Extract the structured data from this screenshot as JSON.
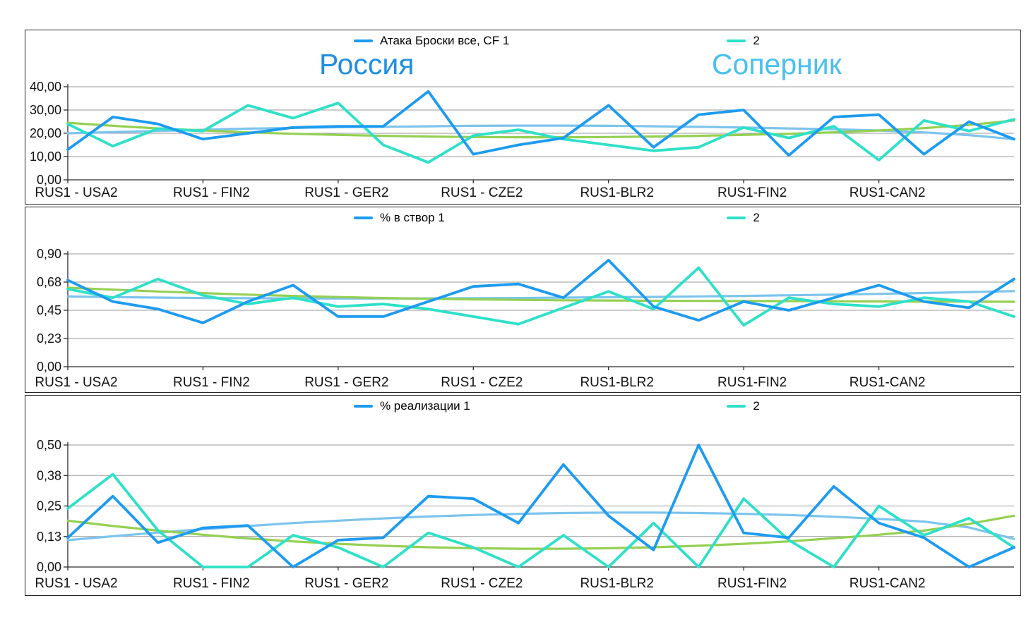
{
  "titles": {
    "left": "Россия",
    "right": "Соперник"
  },
  "colors": {
    "series1": "#1d9bf0",
    "series2": "#2fe0c8",
    "trend1": "#7cc4ed",
    "trend2": "#94d052",
    "title_russia": "#1e8fe3",
    "title_opponent": "#49c0ef",
    "axis": "#2a2a2a",
    "grid": "#9a9a9a",
    "text": "#111111",
    "background": "#ffffff"
  },
  "chart_data": [
    {
      "type": "line",
      "legend": [
        "Атака Броски все, CF 1",
        "2"
      ],
      "ylim": [
        0,
        40
      ],
      "ytick_values": [
        0,
        10,
        20,
        30,
        40
      ],
      "ytick_labels": [
        "0,00",
        "10,00",
        "20,00",
        "30,00",
        "40,00"
      ],
      "categories": [
        "RUS1 - USA2",
        "RUS1 - FIN2",
        "RUS1 - GER2",
        "RUS1 - CZE2",
        "RUS1-BLR2",
        "RUS1-FIN2",
        "RUS1-CAN2"
      ],
      "series": [
        {
          "name": "Атака Броски все, CF 1",
          "color": "#1d9bf0",
          "values": [
            13,
            27,
            24,
            17.5,
            20,
            22.5,
            23,
            23,
            38,
            11,
            15,
            18,
            32,
            14,
            28,
            30,
            10.5,
            27,
            28,
            11,
            25,
            17.5
          ]
        },
        {
          "name": "2",
          "color": "#2fe0c8",
          "values": [
            24,
            14.5,
            22,
            21,
            32,
            26.5,
            33,
            15,
            7.5,
            19,
            21.5,
            17.5,
            15,
            12.5,
            14,
            22.5,
            18,
            23,
            8.5,
            25.5,
            21,
            26
          ]
        }
      ],
      "trendlines": [
        {
          "for": "Атака Броски все, CF 1",
          "color": "#7cc4ed",
          "values": [
            20,
            20.5,
            21,
            21.5,
            22,
            22.3,
            22.6,
            22.8,
            23,
            23.2,
            23.3,
            23.3,
            23.2,
            23,
            22.8,
            22.5,
            22.1,
            21.7,
            21.2,
            20.4,
            19.2,
            17.5
          ]
        },
        {
          "for": "2",
          "color": "#94d052",
          "values": [
            24.5,
            23.2,
            22.1,
            21.2,
            20.4,
            19.8,
            19.3,
            18.9,
            18.6,
            18.4,
            18.3,
            18.3,
            18.4,
            18.6,
            18.9,
            19.3,
            19.8,
            20.4,
            21.2,
            22.2,
            23.6,
            25.5
          ]
        }
      ]
    },
    {
      "type": "line",
      "legend": [
        "% в створ 1",
        "2"
      ],
      "ylim": [
        0,
        0.9
      ],
      "ytick_values": [
        0,
        0.225,
        0.45,
        0.675,
        0.9
      ],
      "ytick_labels": [
        "0,00",
        "0,23",
        "0,45",
        "0,68",
        "0,90"
      ],
      "categories": [
        "RUS1 - USA2",
        "RUS1 - FIN2",
        "RUS1 - GER2",
        "RUS1 - CZE2",
        "RUS1-BLR2",
        "RUS1-FIN2",
        "RUS1-CAN2"
      ],
      "series": [
        {
          "name": "% в створ 1",
          "color": "#1d9bf0",
          "values": [
            0.69,
            0.52,
            0.46,
            0.35,
            0.52,
            0.65,
            0.4,
            0.4,
            0.52,
            0.64,
            0.66,
            0.55,
            0.85,
            0.48,
            0.37,
            0.52,
            0.45,
            0.55,
            0.65,
            0.52,
            0.47,
            0.7
          ]
        },
        {
          "name": "2",
          "color": "#2fe0c8",
          "values": [
            0.62,
            0.55,
            0.7,
            0.57,
            0.5,
            0.55,
            0.48,
            0.5,
            0.46,
            0.4,
            0.34,
            0.47,
            0.6,
            0.46,
            0.79,
            0.33,
            0.55,
            0.5,
            0.48,
            0.55,
            0.52,
            0.4
          ]
        }
      ],
      "trendlines": [
        {
          "for": "% в створ 1",
          "color": "#7cc4ed",
          "values": [
            0.56,
            0.555,
            0.551,
            0.548,
            0.546,
            0.545,
            0.544,
            0.544,
            0.545,
            0.546,
            0.548,
            0.551,
            0.554,
            0.557,
            0.561,
            0.565,
            0.57,
            0.575,
            0.581,
            0.588,
            0.595,
            0.603
          ]
        },
        {
          "for": "2",
          "color": "#94d052",
          "values": [
            0.63,
            0.615,
            0.6,
            0.587,
            0.575,
            0.565,
            0.556,
            0.548,
            0.542,
            0.537,
            0.533,
            0.53,
            0.528,
            0.526,
            0.525,
            0.524,
            0.523,
            0.522,
            0.521,
            0.52,
            0.519,
            0.518
          ]
        }
      ]
    },
    {
      "type": "line",
      "legend": [
        "% реализации 1",
        "2"
      ],
      "ylim": [
        0,
        0.5
      ],
      "ytick_values": [
        0,
        0.125,
        0.25,
        0.375,
        0.5
      ],
      "ytick_labels": [
        "0,00",
        "0,13",
        "0,25",
        "0,38",
        "0,50"
      ],
      "categories": [
        "RUS1 - USA2",
        "RUS1 - FIN2",
        "RUS1 - GER2",
        "RUS1 - CZE2",
        "RUS1-BLR2",
        "RUS1-FIN2",
        "RUS1-CAN2"
      ],
      "series": [
        {
          "name": "% реализации 1",
          "color": "#1d9bf0",
          "values": [
            0.12,
            0.29,
            0.1,
            0.16,
            0.17,
            0.0,
            0.11,
            0.12,
            0.29,
            0.28,
            0.18,
            0.42,
            0.21,
            0.07,
            0.5,
            0.14,
            0.12,
            0.33,
            0.18,
            0.12,
            0.0,
            0.08
          ]
        },
        {
          "name": "2",
          "color": "#2fe0c8",
          "values": [
            0.24,
            0.38,
            0.15,
            0.0,
            0.0,
            0.13,
            0.08,
            0.0,
            0.14,
            0.08,
            0.0,
            0.13,
            0.0,
            0.18,
            0.0,
            0.28,
            0.11,
            0.0,
            0.25,
            0.13,
            0.2,
            0.08
          ]
        }
      ],
      "trendlines": [
        {
          "for": "% реализации 1",
          "color": "#7cc4ed",
          "values": [
            0.11,
            0.126,
            0.141,
            0.155,
            0.168,
            0.18,
            0.19,
            0.199,
            0.207,
            0.213,
            0.218,
            0.221,
            0.223,
            0.223,
            0.221,
            0.218,
            0.213,
            0.206,
            0.197,
            0.186,
            0.162,
            0.115
          ]
        },
        {
          "for": "2",
          "color": "#94d052",
          "values": [
            0.19,
            0.168,
            0.149,
            0.132,
            0.117,
            0.105,
            0.095,
            0.087,
            0.081,
            0.077,
            0.075,
            0.075,
            0.077,
            0.081,
            0.087,
            0.095,
            0.105,
            0.118,
            0.132,
            0.149,
            0.177,
            0.21
          ]
        }
      ]
    }
  ]
}
